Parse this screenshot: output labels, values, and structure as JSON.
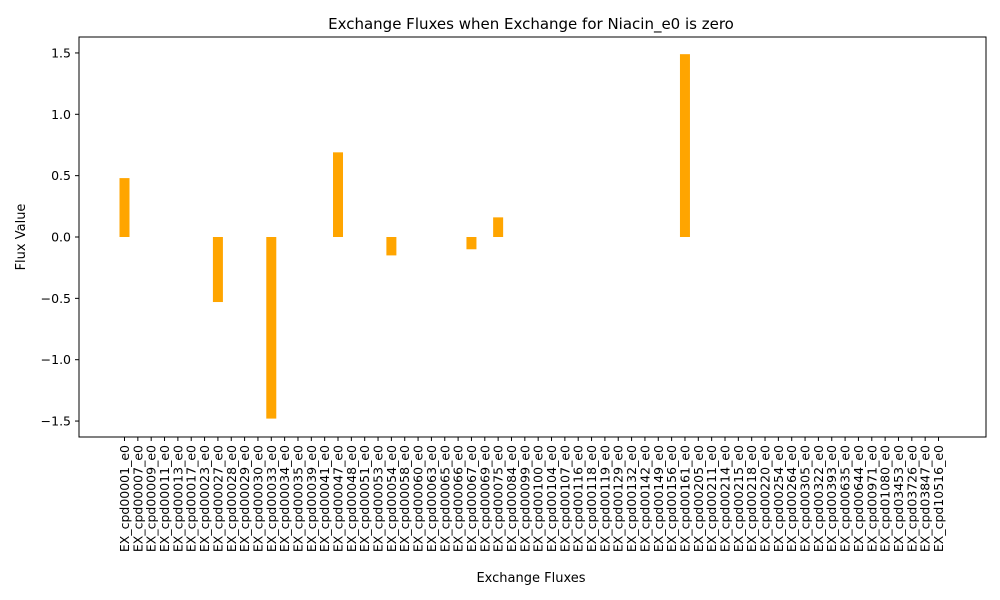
{
  "chart_data": {
    "type": "bar",
    "title": "Exchange Fluxes when Exchange for Niacin_e0 is zero",
    "xlabel": "Exchange Fluxes",
    "ylabel": "Flux Value",
    "ylim": [
      -1.63,
      1.63
    ],
    "yticks": [
      -1.5,
      -1.0,
      -0.5,
      0.0,
      0.5,
      1.0,
      1.5
    ],
    "ytick_labels": [
      "−1.5",
      "−1.0",
      "−0.5",
      "0.0",
      "0.5",
      "1.0",
      "1.5"
    ],
    "grid": false,
    "bar_color": "#FFA500",
    "categories": [
      "EX_cpd00001_e0",
      "EX_cpd00007_e0",
      "EX_cpd00009_e0",
      "EX_cpd00011_e0",
      "EX_cpd00013_e0",
      "EX_cpd00017_e0",
      "EX_cpd00023_e0",
      "EX_cpd00027_e0",
      "EX_cpd00028_e0",
      "EX_cpd00029_e0",
      "EX_cpd00030_e0",
      "EX_cpd00033_e0",
      "EX_cpd00034_e0",
      "EX_cpd00035_e0",
      "EX_cpd00039_e0",
      "EX_cpd00041_e0",
      "EX_cpd00047_e0",
      "EX_cpd00048_e0",
      "EX_cpd00051_e0",
      "EX_cpd00053_e0",
      "EX_cpd00054_e0",
      "EX_cpd00058_e0",
      "EX_cpd00060_e0",
      "EX_cpd00063_e0",
      "EX_cpd00065_e0",
      "EX_cpd00066_e0",
      "EX_cpd00067_e0",
      "EX_cpd00069_e0",
      "EX_cpd00075_e0",
      "EX_cpd00084_e0",
      "EX_cpd00099_e0",
      "EX_cpd00100_e0",
      "EX_cpd00104_e0",
      "EX_cpd00107_e0",
      "EX_cpd00116_e0",
      "EX_cpd00118_e0",
      "EX_cpd00119_e0",
      "EX_cpd00129_e0",
      "EX_cpd00132_e0",
      "EX_cpd00142_e0",
      "EX_cpd00149_e0",
      "EX_cpd00156_e0",
      "EX_cpd00161_e0",
      "EX_cpd00205_e0",
      "EX_cpd00211_e0",
      "EX_cpd00214_e0",
      "EX_cpd00215_e0",
      "EX_cpd00218_e0",
      "EX_cpd00220_e0",
      "EX_cpd00254_e0",
      "EX_cpd00264_e0",
      "EX_cpd00305_e0",
      "EX_cpd00322_e0",
      "EX_cpd00393_e0",
      "EX_cpd00635_e0",
      "EX_cpd00644_e0",
      "EX_cpd00971_e0",
      "EX_cpd01080_e0",
      "EX_cpd03453_e0",
      "EX_cpd03726_e0",
      "EX_cpd03847_e0",
      "EX_cpd10516_e0"
    ],
    "values": [
      0.48,
      0,
      0,
      0,
      0,
      0,
      0,
      -0.53,
      0,
      0,
      0,
      -1.48,
      0,
      0,
      0,
      0,
      0.69,
      0,
      0,
      0,
      -0.15,
      0,
      0,
      0,
      0,
      0,
      -0.1,
      0,
      0.16,
      0,
      0,
      0,
      0,
      0,
      0,
      0,
      0,
      0,
      0,
      0,
      0,
      0,
      1.49,
      0,
      0,
      0,
      0,
      0,
      0,
      0,
      0,
      0,
      0,
      0,
      0,
      0,
      0,
      0,
      0,
      0,
      0,
      0
    ]
  }
}
